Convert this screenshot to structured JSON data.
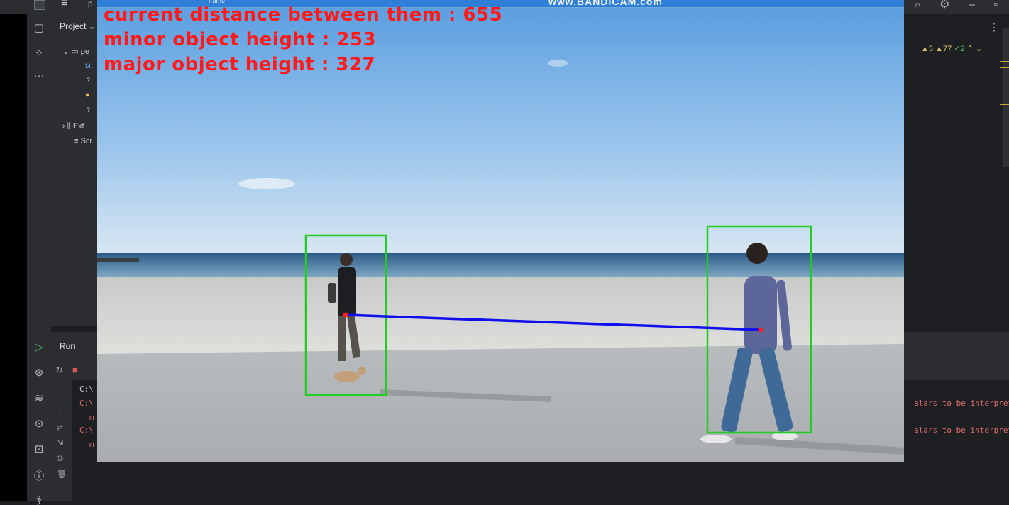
{
  "ide": {
    "project_name": "p",
    "project_label": "Project",
    "tree": [
      {
        "label": "pe",
        "icon": "folder-icon"
      },
      {
        "label": "M↓",
        "icon": "markdown-icon"
      },
      {
        "label": "?",
        "icon": "unknown-file-icon"
      },
      {
        "label": "",
        "icon": "python-file-icon"
      },
      {
        "label": "?",
        "icon": "unknown-file-icon"
      },
      {
        "label": "Ext",
        "icon": "external-libraries-icon"
      },
      {
        "label": "Scr",
        "icon": "scratches-icon"
      }
    ],
    "inspections": {
      "warnings": "5",
      "weak_warnings": "77",
      "ok": "2"
    },
    "run_tab": "Run",
    "console_lines": [
      {
        "text": "C:\\",
        "type": "path"
      },
      {
        "text": "C:\\",
        "type": "error"
      },
      {
        "text": "m",
        "type": "error"
      },
      {
        "text": "C:\\",
        "type": "error"
      },
      {
        "text": "m",
        "type": "error"
      }
    ],
    "console_tail": [
      "alars to be interprete",
      "alars to be interprete"
    ]
  },
  "video": {
    "window_title": "frame",
    "watermark": "www.BANDICAM.com",
    "overlay": {
      "distance_label": "current distance between them : 655",
      "minor_label": "minor object height : 253",
      "major_label": "major object height : 327"
    },
    "distance": 655,
    "minor_height": 253,
    "major_height": 327,
    "colors": {
      "box": "#22cc22",
      "line": "#1010ee",
      "text": "#ff1a1a",
      "point": "#ff2020"
    }
  }
}
